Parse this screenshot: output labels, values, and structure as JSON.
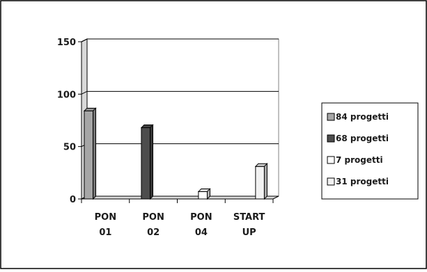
{
  "chart_data": {
    "type": "bar",
    "style": "3d-clustered",
    "categories": [
      [
        "PON",
        "01"
      ],
      [
        "PON",
        "02"
      ],
      [
        "PON",
        "04"
      ],
      [
        "START",
        "UP"
      ]
    ],
    "series": [
      {
        "name": "84 progetti",
        "values": [
          84,
          0,
          0,
          0
        ],
        "color": "#a6a6a6"
      },
      {
        "name": "68 progetti",
        "values": [
          0,
          68,
          0,
          0
        ],
        "color": "#4d4d4d"
      },
      {
        "name": "7 progetti",
        "values": [
          0,
          0,
          7,
          0
        ],
        "color": "#ffffff"
      },
      {
        "name": "31 progetti",
        "values": [
          0,
          0,
          0,
          31
        ],
        "color": "#f2f2f2"
      }
    ],
    "ylim": [
      0,
      150
    ],
    "yticks": [
      "0",
      "50",
      "100",
      "150"
    ],
    "grid": true,
    "legend_position": "right",
    "title": "",
    "xlabel": "",
    "ylabel": ""
  }
}
